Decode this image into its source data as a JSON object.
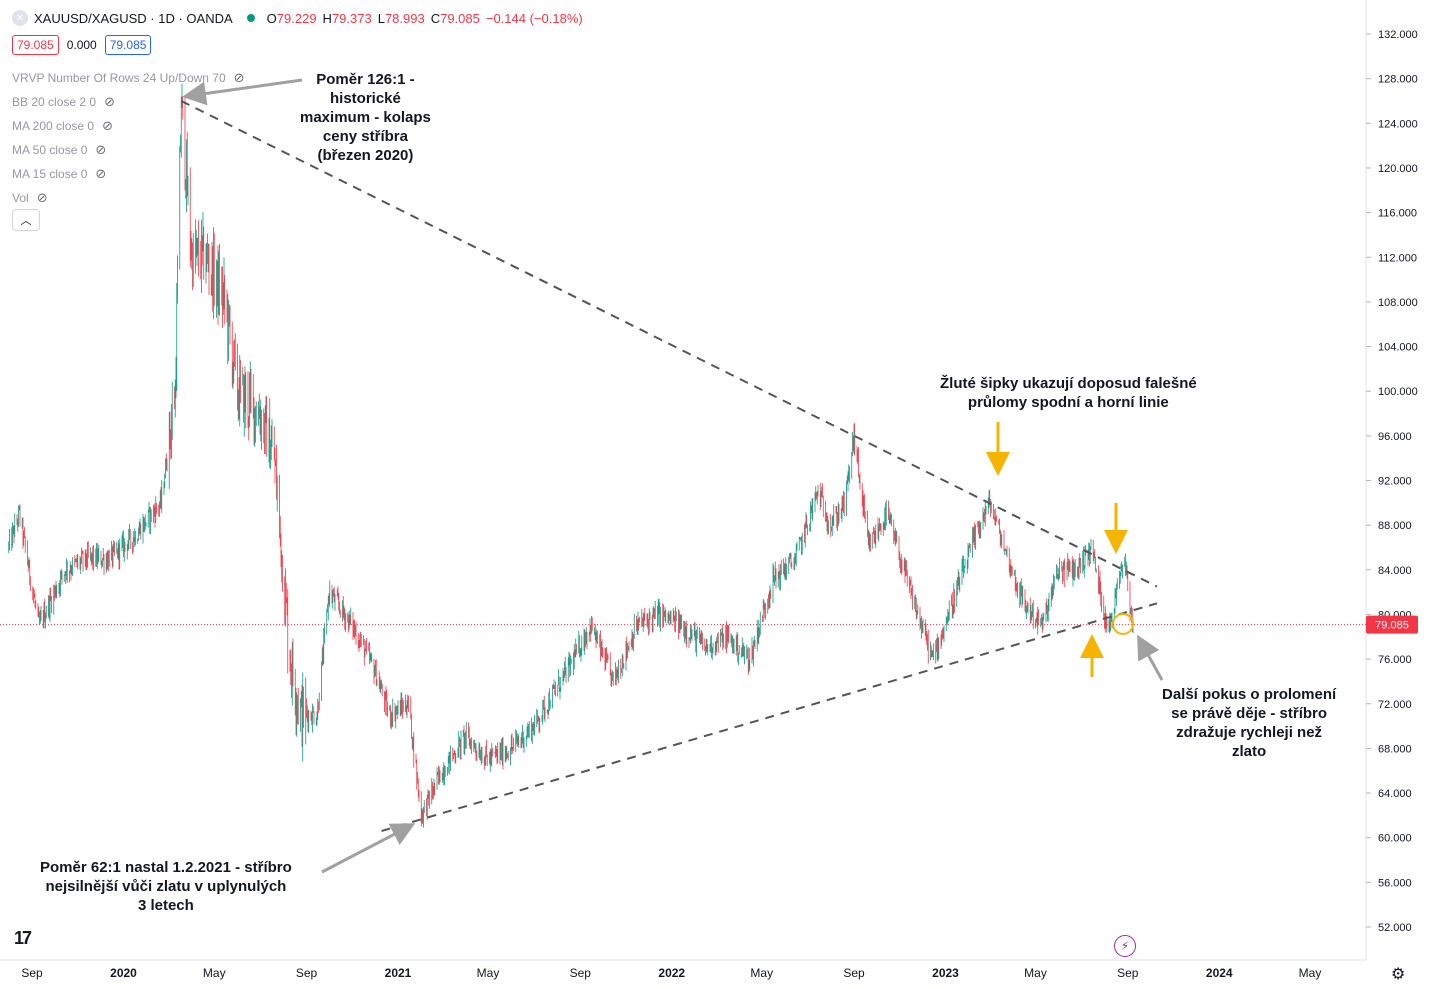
{
  "header": {
    "symbol": "XAUUSD/XAGUSD · 1D · OANDA",
    "open_label": "O",
    "open_value": "79.229",
    "high_label": "H",
    "high_value": "79.373",
    "low_label": "L",
    "low_value": "78.993",
    "close_label": "C",
    "close_value": "79.085",
    "change": "−0.144 (−0.18%)"
  },
  "price_boxes": {
    "bid": "79.085",
    "spread": "0.000",
    "ask": "79.085"
  },
  "indicators": [
    {
      "label": "VRVP Number Of Rows 24 Up/Down 70",
      "icon": "eye-off-icon"
    },
    {
      "label": "BB 20 close 2 0",
      "icon": "eye-off-icon"
    },
    {
      "label": "MA 200 close 0",
      "icon": "eye-off-icon"
    },
    {
      "label": "MA 50 close 0",
      "icon": "eye-off-icon"
    },
    {
      "label": "MA 15 close 0",
      "icon": "eye-off-icon"
    },
    {
      "label": "Vol",
      "icon": "eye-off-icon"
    }
  ],
  "annotations": {
    "top": [
      "Poměr 126:1 -",
      "historické",
      "maximum - kolaps",
      "ceny stříbra",
      "(březen 2020)"
    ],
    "bottom": [
      "Poměr 62:1 nastal 1.2.2021 - stříbro",
      "nejsilnější vůči zlatu v uplynulých",
      "3 letech"
    ],
    "yellow": [
      "Žluté šipky ukazují doposud falešné",
      "průlomy spodní a horní linie"
    ],
    "right": [
      "Další pokus o prolomení",
      "se právě děje - stříbro",
      "zdražuje rychleji než",
      "zlato"
    ]
  },
  "colors": {
    "up": "#089981",
    "down": "#f23645",
    "yellow": "#f5b400",
    "trend": "#555555",
    "arrow_gray": "#a0a0a0"
  },
  "chart_data": {
    "type": "candlestick",
    "title": "XAUUSD/XAGUSD · 1D · OANDA",
    "ylim": [
      49,
      133
    ],
    "y_ticks": [
      "132.000",
      "128.000",
      "124.000",
      "120.000",
      "116.000",
      "112.000",
      "108.000",
      "104.000",
      "100.000",
      "96.000",
      "92.000",
      "88.000",
      "84.000",
      "80.000",
      "76.000",
      "72.000",
      "68.000",
      "64.000",
      "60.000",
      "56.000",
      "52.000"
    ],
    "y_tick_values": [
      132,
      128,
      124,
      120,
      116,
      112,
      108,
      104,
      100,
      96,
      92,
      88,
      84,
      80,
      76,
      72,
      68,
      64,
      60,
      56,
      52
    ],
    "x_ticks": [
      "Sep",
      "2020",
      "May",
      "Sep",
      "2021",
      "May",
      "Sep",
      "2022",
      "May",
      "Sep",
      "2023",
      "May",
      "Sep",
      "2024",
      "May"
    ],
    "x_tick_dates": [
      "2019-09-01",
      "2020-01-01",
      "2020-05-01",
      "2020-09-01",
      "2021-01-01",
      "2021-05-01",
      "2021-09-01",
      "2022-01-01",
      "2022-05-01",
      "2022-09-01",
      "2023-01-01",
      "2023-05-01",
      "2023-09-01",
      "2024-01-01",
      "2024-05-01"
    ],
    "current_price": 79.085,
    "current_price_label": "79.085",
    "series": [
      {
        "key_points": [
          {
            "date": "2019-08-01",
            "value": 86
          },
          {
            "date": "2019-08-15",
            "value": 89
          },
          {
            "date": "2019-09-10",
            "value": 79
          },
          {
            "date": "2019-10-15",
            "value": 84
          },
          {
            "date": "2019-11-15",
            "value": 85
          },
          {
            "date": "2019-12-15",
            "value": 85
          },
          {
            "date": "2020-01-15",
            "value": 87
          },
          {
            "date": "2020-02-20",
            "value": 90
          },
          {
            "date": "2020-03-10",
            "value": 100
          },
          {
            "date": "2020-03-18",
            "value": 126
          },
          {
            "date": "2020-04-01",
            "value": 112
          },
          {
            "date": "2020-04-20",
            "value": 112
          },
          {
            "date": "2020-05-15",
            "value": 108
          },
          {
            "date": "2020-06-01",
            "value": 100
          },
          {
            "date": "2020-07-01",
            "value": 98
          },
          {
            "date": "2020-07-20",
            "value": 94
          },
          {
            "date": "2020-08-10",
            "value": 76
          },
          {
            "date": "2020-08-25",
            "value": 71
          },
          {
            "date": "2020-09-15",
            "value": 71
          },
          {
            "date": "2020-10-01",
            "value": 82
          },
          {
            "date": "2020-11-01",
            "value": 79
          },
          {
            "date": "2020-12-01",
            "value": 75
          },
          {
            "date": "2020-12-20",
            "value": 71
          },
          {
            "date": "2021-01-15",
            "value": 72
          },
          {
            "date": "2021-02-01",
            "value": 62
          },
          {
            "date": "2021-03-01",
            "value": 66
          },
          {
            "date": "2021-04-01",
            "value": 69
          },
          {
            "date": "2021-05-01",
            "value": 67
          },
          {
            "date": "2021-06-01",
            "value": 68
          },
          {
            "date": "2021-07-01",
            "value": 70
          },
          {
            "date": "2021-08-15",
            "value": 75
          },
          {
            "date": "2021-09-15",
            "value": 79
          },
          {
            "date": "2021-10-15",
            "value": 74
          },
          {
            "date": "2021-11-15",
            "value": 79
          },
          {
            "date": "2021-12-15",
            "value": 80
          },
          {
            "date": "2022-01-15",
            "value": 79
          },
          {
            "date": "2022-02-15",
            "value": 77
          },
          {
            "date": "2022-03-15",
            "value": 78
          },
          {
            "date": "2022-04-15",
            "value": 76
          },
          {
            "date": "2022-05-15",
            "value": 83
          },
          {
            "date": "2022-06-15",
            "value": 85
          },
          {
            "date": "2022-07-15",
            "value": 91
          },
          {
            "date": "2022-08-01",
            "value": 88
          },
          {
            "date": "2022-08-20",
            "value": 90
          },
          {
            "date": "2022-09-01",
            "value": 96
          },
          {
            "date": "2022-09-20",
            "value": 86
          },
          {
            "date": "2022-10-15",
            "value": 89
          },
          {
            "date": "2022-11-15",
            "value": 82
          },
          {
            "date": "2022-12-15",
            "value": 76
          },
          {
            "date": "2023-01-10",
            "value": 81
          },
          {
            "date": "2023-02-15",
            "value": 88
          },
          {
            "date": "2023-03-01",
            "value": 90
          },
          {
            "date": "2023-03-25",
            "value": 85
          },
          {
            "date": "2023-04-15",
            "value": 81
          },
          {
            "date": "2023-05-10",
            "value": 79
          },
          {
            "date": "2023-06-01",
            "value": 84
          },
          {
            "date": "2023-06-25",
            "value": 84
          },
          {
            "date": "2023-07-15",
            "value": 86
          },
          {
            "date": "2023-08-01",
            "value": 80
          },
          {
            "date": "2023-08-10",
            "value": 79
          },
          {
            "date": "2023-08-20",
            "value": 84
          },
          {
            "date": "2023-08-28",
            "value": 85
          },
          {
            "date": "2023-09-04",
            "value": 81
          },
          {
            "date": "2023-09-08",
            "value": 79
          }
        ]
      }
    ],
    "trendlines": [
      {
        "name": "upper",
        "from": {
          "date": "2020-03-18",
          "value": 126
        },
        "to": {
          "date": "2023-10-10",
          "value": 82.5
        }
      },
      {
        "name": "lower",
        "from": {
          "date": "2020-12-10",
          "value": 60.6
        },
        "to": {
          "date": "2023-10-10",
          "value": 81
        }
      }
    ]
  }
}
